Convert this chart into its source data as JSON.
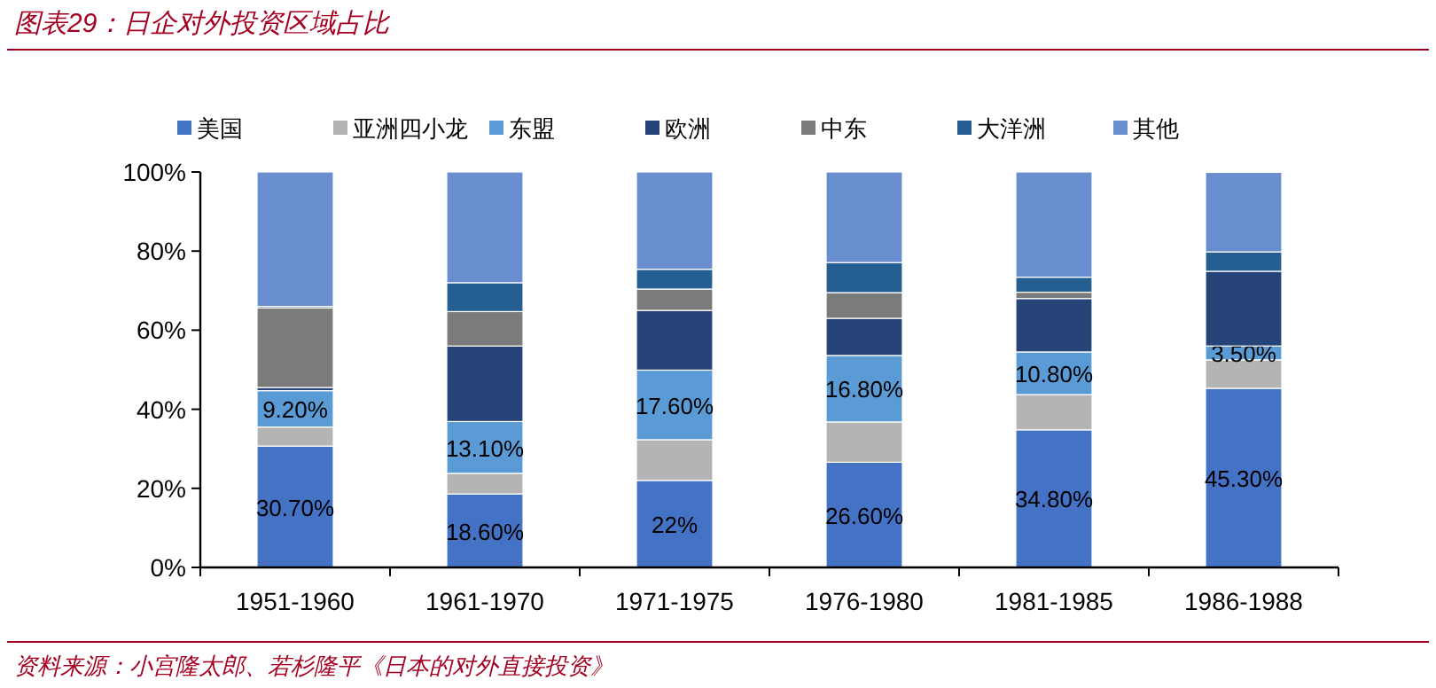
{
  "chart_data": {
    "type": "bar",
    "title": "图表29：日企对外投资区域占比",
    "stacked": true,
    "legend": "top",
    "grid": false,
    "categories": [
      "1951-1960",
      "1961-1970",
      "1971-1975",
      "1976-1980",
      "1981-1985",
      "1986-1988"
    ],
    "ylim": [
      0,
      100
    ],
    "yticks": [
      {
        "value": 0,
        "label": "0%"
      },
      {
        "value": 20,
        "label": "20%"
      },
      {
        "value": 40,
        "label": "40%"
      },
      {
        "value": 60,
        "label": "60%"
      },
      {
        "value": 80,
        "label": "80%"
      },
      {
        "value": 100,
        "label": "100%"
      }
    ],
    "series": [
      {
        "name": "美国",
        "color": "#4472c4",
        "values": [
          30.7,
          18.6,
          22,
          26.6,
          34.8,
          45.3
        ],
        "value_labels": [
          "30.70%",
          "18.60%",
          "22%",
          "26.60%",
          "34.80%",
          "45.30%"
        ]
      },
      {
        "name": "亚洲四小龙",
        "color": "#b4b4b4",
        "values": [
          4.8,
          5.2,
          10.3,
          10.2,
          8.9,
          7.2
        ]
      },
      {
        "name": "东盟",
        "color": "#5b9bd5",
        "values": [
          9.2,
          13.1,
          17.6,
          16.8,
          10.8,
          3.5
        ],
        "value_labels": [
          "9.20%",
          "13.10%",
          "17.60%",
          "16.80%",
          "10.80%",
          "3.50%"
        ]
      },
      {
        "name": "欧洲",
        "color": "#264478",
        "values": [
          0.8,
          19.1,
          15.1,
          9.4,
          13.5,
          18.9
        ]
      },
      {
        "name": "中东",
        "color": "#7b7b7b",
        "values": [
          20.1,
          8.7,
          5.4,
          6.5,
          1.6,
          null
        ]
      },
      {
        "name": "大洋洲",
        "color": "#255e91",
        "values": [
          0.4,
          7.3,
          5.0,
          7.6,
          3.8,
          4.9
        ]
      },
      {
        "name": "其他",
        "color": "#698ed0",
        "values": [
          34.0,
          28.0,
          24.6,
          22.9,
          26.6,
          20.1
        ]
      }
    ],
    "annotations": [
      "资料来源：小宫隆太郎、若杉隆平《日本的对外直接投资》"
    ]
  }
}
